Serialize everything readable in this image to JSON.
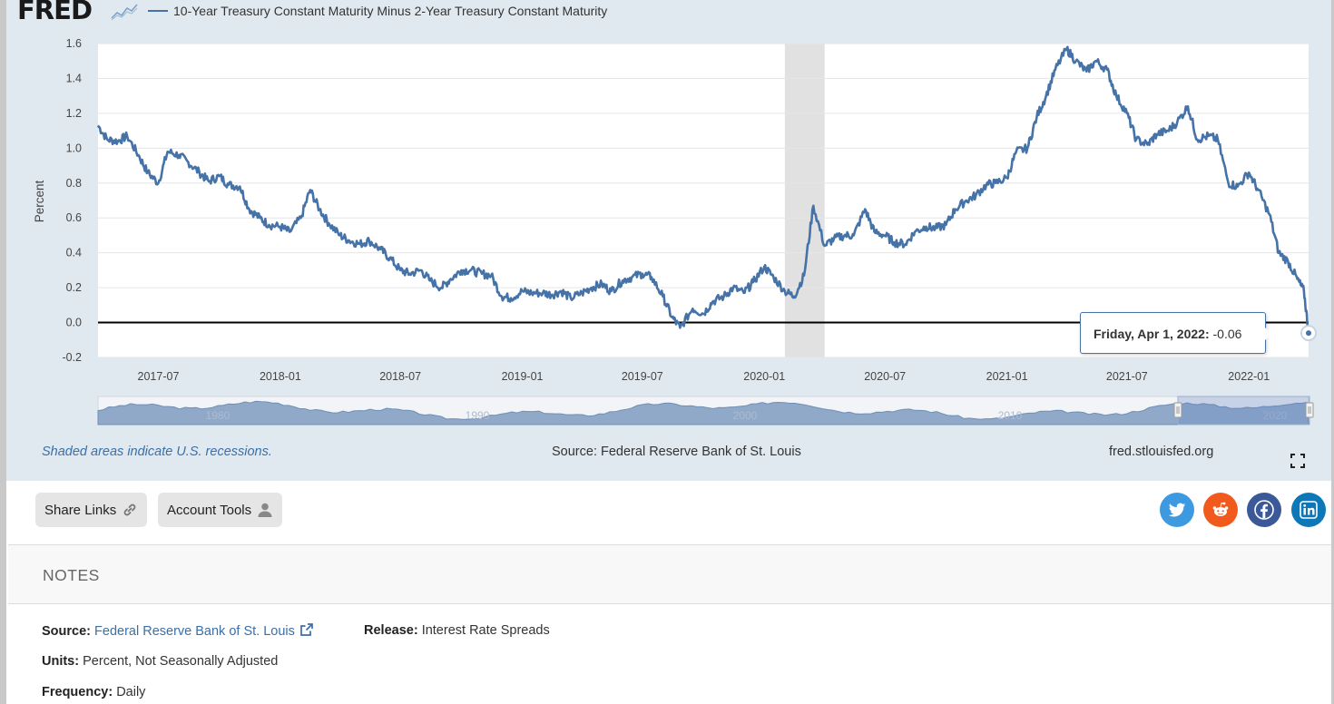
{
  "header": {
    "logo": "FRED",
    "legend_label": "10-Year Treasury Constant Maturity Minus 2-Year Treasury Constant Maturity",
    "series_color": "#4572a7"
  },
  "chart_data": {
    "type": "line",
    "ylabel": "Percent",
    "ylim": [
      -0.2,
      1.6
    ],
    "yticks": [
      "1.6",
      "1.4",
      "1.2",
      "1.0",
      "0.8",
      "0.6",
      "0.4",
      "0.2",
      "0.0",
      "-0.2"
    ],
    "xticks": [
      "2017-07",
      "2018-01",
      "2018-07",
      "2019-01",
      "2019-07",
      "2020-01",
      "2020-07",
      "2021-01",
      "2021-07",
      "2022-01"
    ],
    "xlim": [
      "2017-04-01",
      "2022-04-01"
    ],
    "recession": [
      "2020-02-01",
      "2020-04-01"
    ],
    "zero_line": 0.0,
    "series": [
      {
        "name": "10-Year Treasury Constant Maturity Minus 2-Year Treasury Constant Maturity",
        "points": [
          [
            "2017-04-01",
            1.13
          ],
          [
            "2017-04-15",
            1.05
          ],
          [
            "2017-05-01",
            1.04
          ],
          [
            "2017-05-15",
            1.07
          ],
          [
            "2017-06-01",
            0.96
          ],
          [
            "2017-06-15",
            0.86
          ],
          [
            "2017-07-01",
            0.8
          ],
          [
            "2017-07-15",
            0.98
          ],
          [
            "2017-08-01",
            0.96
          ],
          [
            "2017-08-15",
            0.92
          ],
          [
            "2017-09-01",
            0.86
          ],
          [
            "2017-09-15",
            0.81
          ],
          [
            "2017-10-01",
            0.84
          ],
          [
            "2017-10-15",
            0.79
          ],
          [
            "2017-11-01",
            0.78
          ],
          [
            "2017-11-15",
            0.65
          ],
          [
            "2017-12-01",
            0.6
          ],
          [
            "2017-12-15",
            0.56
          ],
          [
            "2018-01-01",
            0.55
          ],
          [
            "2018-01-15",
            0.52
          ],
          [
            "2018-02-01",
            0.6
          ],
          [
            "2018-02-15",
            0.76
          ],
          [
            "2018-03-01",
            0.65
          ],
          [
            "2018-03-15",
            0.57
          ],
          [
            "2018-04-01",
            0.5
          ],
          [
            "2018-04-15",
            0.47
          ],
          [
            "2018-05-01",
            0.45
          ],
          [
            "2018-05-15",
            0.47
          ],
          [
            "2018-06-01",
            0.42
          ],
          [
            "2018-06-15",
            0.37
          ],
          [
            "2018-07-01",
            0.3
          ],
          [
            "2018-07-15",
            0.28
          ],
          [
            "2018-08-01",
            0.3
          ],
          [
            "2018-08-15",
            0.24
          ],
          [
            "2018-09-01",
            0.2
          ],
          [
            "2018-09-15",
            0.25
          ],
          [
            "2018-10-01",
            0.3
          ],
          [
            "2018-10-15",
            0.3
          ],
          [
            "2018-11-01",
            0.28
          ],
          [
            "2018-11-15",
            0.27
          ],
          [
            "2018-12-01",
            0.15
          ],
          [
            "2018-12-15",
            0.14
          ],
          [
            "2019-01-01",
            0.18
          ],
          [
            "2019-01-15",
            0.17
          ],
          [
            "2019-02-01",
            0.17
          ],
          [
            "2019-02-15",
            0.16
          ],
          [
            "2019-03-01",
            0.18
          ],
          [
            "2019-03-15",
            0.14
          ],
          [
            "2019-04-01",
            0.17
          ],
          [
            "2019-04-15",
            0.2
          ],
          [
            "2019-05-01",
            0.22
          ],
          [
            "2019-05-15",
            0.18
          ],
          [
            "2019-06-01",
            0.24
          ],
          [
            "2019-06-15",
            0.26
          ],
          [
            "2019-07-01",
            0.28
          ],
          [
            "2019-07-15",
            0.26
          ],
          [
            "2019-08-01",
            0.15
          ],
          [
            "2019-08-15",
            0.03
          ],
          [
            "2019-08-27",
            -0.03
          ],
          [
            "2019-09-15",
            0.08
          ],
          [
            "2019-10-01",
            0.05
          ],
          [
            "2019-10-15",
            0.12
          ],
          [
            "2019-11-01",
            0.15
          ],
          [
            "2019-11-15",
            0.2
          ],
          [
            "2019-12-01",
            0.17
          ],
          [
            "2019-12-15",
            0.23
          ],
          [
            "2020-01-01",
            0.32
          ],
          [
            "2020-01-15",
            0.26
          ],
          [
            "2020-02-01",
            0.18
          ],
          [
            "2020-02-15",
            0.15
          ],
          [
            "2020-03-01",
            0.27
          ],
          [
            "2020-03-15",
            0.67
          ],
          [
            "2020-04-01",
            0.44
          ],
          [
            "2020-04-15",
            0.48
          ],
          [
            "2020-05-01",
            0.5
          ],
          [
            "2020-05-15",
            0.5
          ],
          [
            "2020-06-01",
            0.65
          ],
          [
            "2020-06-15",
            0.52
          ],
          [
            "2020-07-01",
            0.5
          ],
          [
            "2020-07-15",
            0.46
          ],
          [
            "2020-08-01",
            0.45
          ],
          [
            "2020-08-15",
            0.52
          ],
          [
            "2020-09-01",
            0.55
          ],
          [
            "2020-09-15",
            0.54
          ],
          [
            "2020-10-01",
            0.56
          ],
          [
            "2020-10-15",
            0.65
          ],
          [
            "2020-11-01",
            0.7
          ],
          [
            "2020-11-15",
            0.73
          ],
          [
            "2020-12-01",
            0.79
          ],
          [
            "2020-12-15",
            0.8
          ],
          [
            "2021-01-01",
            0.83
          ],
          [
            "2021-01-15",
            0.98
          ],
          [
            "2021-02-01",
            1.0
          ],
          [
            "2021-02-15",
            1.18
          ],
          [
            "2021-03-01",
            1.3
          ],
          [
            "2021-03-15",
            1.45
          ],
          [
            "2021-04-01",
            1.57
          ],
          [
            "2021-04-15",
            1.5
          ],
          [
            "2021-05-01",
            1.44
          ],
          [
            "2021-05-15",
            1.5
          ],
          [
            "2021-06-01",
            1.45
          ],
          [
            "2021-06-15",
            1.3
          ],
          [
            "2021-07-01",
            1.2
          ],
          [
            "2021-07-15",
            1.05
          ],
          [
            "2021-08-01",
            1.02
          ],
          [
            "2021-08-15",
            1.08
          ],
          [
            "2021-09-01",
            1.1
          ],
          [
            "2021-09-15",
            1.15
          ],
          [
            "2021-10-01",
            1.24
          ],
          [
            "2021-10-15",
            1.05
          ],
          [
            "2021-11-01",
            1.07
          ],
          [
            "2021-11-15",
            1.05
          ],
          [
            "2021-12-01",
            0.8
          ],
          [
            "2021-12-15",
            0.78
          ],
          [
            "2022-01-01",
            0.86
          ],
          [
            "2022-01-15",
            0.76
          ],
          [
            "2022-02-01",
            0.62
          ],
          [
            "2022-02-15",
            0.4
          ],
          [
            "2022-03-01",
            0.35
          ],
          [
            "2022-03-15",
            0.25
          ],
          [
            "2022-03-25",
            0.18
          ],
          [
            "2022-04-01",
            -0.06
          ]
        ]
      }
    ]
  },
  "navigator": {
    "labels": [
      "1980",
      "1990",
      "2000",
      "2010",
      "2020"
    ]
  },
  "tooltip": {
    "date": "Friday, Apr 1, 2022:",
    "value": "-0.06"
  },
  "footer_notes": {
    "recession_note": "Shaded areas indicate U.S. recessions.",
    "source_note": "Source: Federal Reserve Bank of St. Louis",
    "site": "fred.stlouisfed.org"
  },
  "actions": {
    "share_links": "Share Links",
    "account_tools": "Account Tools"
  },
  "social": {
    "twitter_color": "#3d9ae0",
    "reddit_color": "#f25a1d",
    "facebook_color": "#3b5998",
    "linkedin_color": "#0d77b7"
  },
  "notes": {
    "title": "NOTES",
    "source_label": "Source:",
    "source_value": "Federal Reserve Bank of St. Louis",
    "release_label": "Release:",
    "release_value": "Interest Rate Spreads",
    "units_label": "Units:",
    "units_value": "Percent, Not Seasonally Adjusted",
    "frequency_label": "Frequency:",
    "frequency_value": "Daily"
  }
}
